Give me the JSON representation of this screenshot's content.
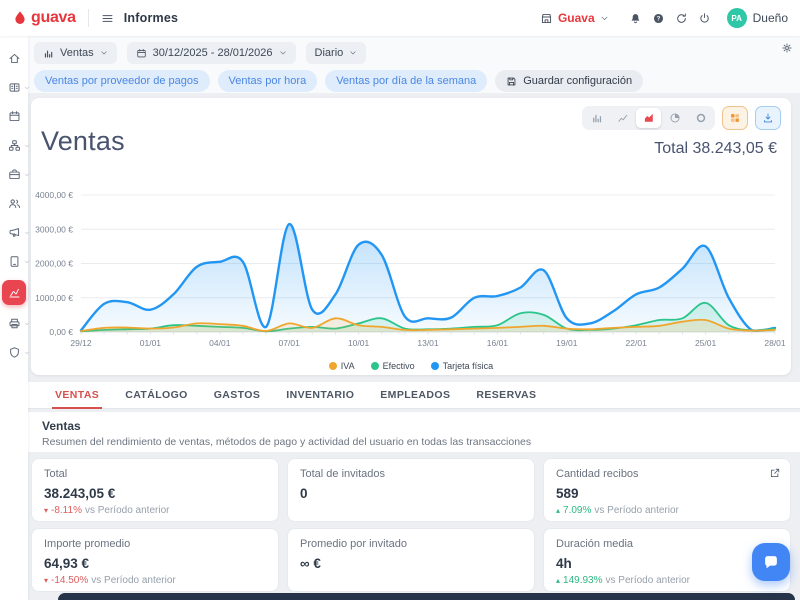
{
  "brand": {
    "name": "guava",
    "color": "#e8363d"
  },
  "header": {
    "page_title": "Informes",
    "account_name": "Guava",
    "user_initials": "PA",
    "user_name": "Dueño"
  },
  "sidebar": {
    "items": [
      {
        "id": "home",
        "icon": "home-icon"
      },
      {
        "id": "catalog",
        "icon": "catalog-icon",
        "chevron": true
      },
      {
        "id": "calendar",
        "icon": "calendar-icon"
      },
      {
        "id": "integrations",
        "icon": "integrations-icon",
        "chevron": true
      },
      {
        "id": "business",
        "icon": "business-icon",
        "chevron": true
      },
      {
        "id": "customers",
        "icon": "customers-icon"
      },
      {
        "id": "marketing",
        "icon": "marketing-icon",
        "chevron": true
      },
      {
        "id": "devices",
        "icon": "devices-icon",
        "chevron": true
      },
      {
        "id": "reports",
        "icon": "reports-icon",
        "active": true
      },
      {
        "id": "printers",
        "icon": "printers-icon",
        "chevron": true
      },
      {
        "id": "security",
        "icon": "security-icon",
        "chevron": true
      }
    ]
  },
  "toolbar": {
    "report_select": "Ventas",
    "date_range": "30/12/2025 - 28/01/2026",
    "granularity_select": "Diario",
    "quick_views": [
      "Ventas por proveedor de pagos",
      "Ventas por hora",
      "Ventas por día de la semana"
    ],
    "save_button": "Guardar configuración"
  },
  "chart_card": {
    "title": "Ventas",
    "total_text": "Total 38.243,05 €"
  },
  "chart_toolbar": {
    "types": [
      "bar",
      "line",
      "area",
      "pie",
      "donut"
    ],
    "active_index": 2
  },
  "chart_data": {
    "type": "area",
    "title": "Ventas",
    "total": "38.243,05 €",
    "x": [
      "29/12",
      "30/12",
      "31/12",
      "01/01",
      "02/01",
      "03/01",
      "04/01",
      "05/01",
      "06/01",
      "07/01",
      "08/01",
      "09/01",
      "10/01",
      "11/01",
      "12/01",
      "13/01",
      "14/01",
      "15/01",
      "16/01",
      "17/01",
      "18/01",
      "19/01",
      "20/01",
      "21/01",
      "22/01",
      "23/01",
      "24/01",
      "25/01",
      "26/01",
      "27/01",
      "28/01"
    ],
    "x_tick_every": 3,
    "ylim": [
      0,
      4000
    ],
    "y_ticks": [
      "0,00 €",
      "1000,00 €",
      "2000,00 €",
      "3000,00 €",
      "4000,00 €"
    ],
    "grid": true,
    "legend_position": "bottom",
    "series": [
      {
        "name": "IVA",
        "color": "#f0a52f",
        "values": [
          30,
          120,
          130,
          100,
          130,
          250,
          230,
          180,
          30,
          250,
          120,
          400,
          200,
          150,
          60,
          60,
          80,
          100,
          120,
          150,
          180,
          100,
          80,
          120,
          150,
          180,
          300,
          350,
          100,
          40,
          60
        ]
      },
      {
        "name": "Efectivo",
        "color": "#2bc48a",
        "values": [
          20,
          60,
          80,
          100,
          200,
          180,
          150,
          120,
          20,
          100,
          150,
          100,
          250,
          400,
          100,
          80,
          100,
          150,
          200,
          550,
          500,
          100,
          60,
          100,
          200,
          350,
          400,
          850,
          200,
          50,
          100
        ]
      },
      {
        "name": "Tarjeta física",
        "color": "#2196f3",
        "values": [
          50,
          820,
          870,
          650,
          1100,
          1900,
          2050,
          2050,
          150,
          3150,
          650,
          1100,
          2550,
          2250,
          450,
          400,
          420,
          1000,
          1050,
          1300,
          1800,
          400,
          250,
          600,
          1100,
          1300,
          1850,
          2500,
          1000,
          50,
          120
        ]
      }
    ]
  },
  "tabs": {
    "items": [
      "VENTAS",
      "CATÁLOGO",
      "GASTOS",
      "INVENTARIO",
      "EMPLEADOS",
      "RESERVAS"
    ],
    "active_index": 0
  },
  "section": {
    "title": "Ventas",
    "description": "Resumen del rendimiento de ventas, métodos de pago y actividad del usuario en todas las transacciones"
  },
  "stats": [
    {
      "label": "Total",
      "value": "38.243,05 €",
      "delta": "-8.11%",
      "delta_dir": "down",
      "vs": "vs Período anterior"
    },
    {
      "label": "Total de invitados",
      "value": "0"
    },
    {
      "label": "Cantidad recibos",
      "value": "589",
      "delta": "7.09%",
      "delta_dir": "up",
      "vs": "vs Período anterior",
      "external": true
    },
    {
      "label": "Importe promedio",
      "value": "64,93 €",
      "delta": "-14.50%",
      "delta_dir": "down",
      "vs": "vs Período anterior"
    },
    {
      "label": "Promedio por invitado",
      "value": "∞ €"
    },
    {
      "label": "Duración media",
      "value": "4h",
      "delta": "149.93%",
      "delta_dir": "up",
      "vs": "vs Período anterior"
    }
  ]
}
